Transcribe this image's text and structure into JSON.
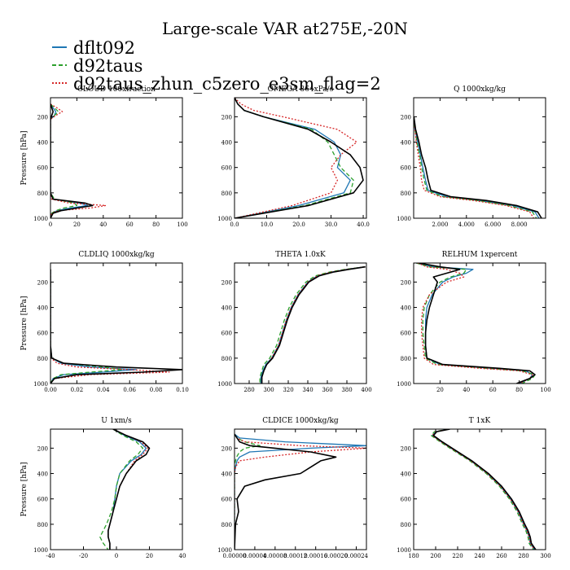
{
  "title": "Large-scale VAR at275E,-20N",
  "legend": [
    {
      "label": "dflt092",
      "color": "#1f77b4",
      "dash": "solid"
    },
    {
      "label": "d92taus",
      "color": "#2ca02c",
      "dash": "dashed"
    },
    {
      "label": "d92taus_zhun_c5zero_e3sm_flag=2",
      "color": "#d62728",
      "dash": "dotted"
    }
  ],
  "chart_data": [
    {
      "type": "line",
      "title": "CLOUD 100xfraction",
      "ylabel": "Pressure [hPa]",
      "xlim": [
        0,
        100
      ],
      "ylim": [
        1000,
        50
      ],
      "xticks": [
        "0",
        "20",
        "40",
        "60",
        "80",
        "100"
      ],
      "yticks": [
        "200",
        "400",
        "600",
        "800",
        "1000"
      ],
      "y": [
        100,
        130,
        160,
        190,
        220,
        300,
        500,
        700,
        800,
        850,
        880,
        900,
        920,
        940,
        960,
        1000
      ],
      "series": [
        {
          "name": "dflt092",
          "values": [
            0,
            2,
            4,
            3,
            0,
            0,
            0,
            0,
            0,
            2,
            22,
            28,
            15,
            5,
            1,
            0
          ]
        },
        {
          "name": "d92taus",
          "values": [
            0,
            3,
            6,
            3,
            0,
            0,
            0,
            0,
            0,
            3,
            18,
            20,
            10,
            4,
            1,
            0
          ]
        },
        {
          "name": "d92taus_zhun_c5zero_e3sm_flag=2",
          "values": [
            0,
            5,
            9,
            4,
            0,
            0,
            0,
            0,
            0,
            1,
            14,
            42,
            30,
            6,
            1,
            0
          ]
        },
        {
          "name": "",
          "values": [
            0,
            1,
            2,
            1,
            0,
            0,
            0,
            0,
            0,
            2,
            26,
            32,
            20,
            8,
            2,
            0
          ]
        }
      ]
    },
    {
      "type": "line",
      "title": "OMEGA 864xPa/s",
      "ylabel": "",
      "xlim": [
        0,
        41
      ],
      "ylim": [
        1000,
        50
      ],
      "xticks": [
        "0.0",
        "10.0",
        "20.0",
        "30.0",
        "40.0"
      ],
      "yticks": [
        "200",
        "400",
        "600",
        "800",
        "1000"
      ],
      "y": [
        50,
        100,
        150,
        200,
        300,
        400,
        500,
        600,
        700,
        800,
        900,
        1000
      ],
      "series": [
        {
          "name": "dflt092",
          "values": [
            0,
            1,
            3,
            9,
            25,
            31,
            33,
            32,
            36,
            34,
            20,
            0
          ]
        },
        {
          "name": "d92taus",
          "values": [
            0,
            1,
            3,
            9,
            24,
            29,
            31,
            33,
            37,
            36,
            22,
            0
          ]
        },
        {
          "name": "d92taus_zhun_c5zero_e3sm_flag=2",
          "values": [
            0,
            2,
            6,
            15,
            32,
            38,
            33,
            30,
            32,
            30,
            18,
            0
          ]
        },
        {
          "name": "",
          "values": [
            0,
            1,
            3,
            9,
            23,
            30,
            36,
            39,
            40,
            37,
            23,
            0
          ]
        }
      ]
    },
    {
      "type": "line",
      "title": "Q  1000xkg/kg",
      "ylabel": "",
      "xlim": [
        0,
        10
      ],
      "ylim": [
        1000,
        50
      ],
      "xticks": [
        "2.000",
        "4.000",
        "6.000",
        "8.000"
      ],
      "yticks": [
        "200",
        "400",
        "600",
        "800",
        "1000"
      ],
      "y": [
        200,
        300,
        400,
        500,
        600,
        700,
        780,
        830,
        860,
        900,
        950,
        1000
      ],
      "series": [
        {
          "name": "dflt092",
          "values": [
            0.02,
            0.1,
            0.3,
            0.5,
            0.7,
            0.9,
            1.1,
            2.5,
            5.0,
            7.5,
            9.2,
            9.5
          ]
        },
        {
          "name": "d92taus",
          "values": [
            0.02,
            0.1,
            0.25,
            0.45,
            0.6,
            0.8,
            1.0,
            2.2,
            4.8,
            7.2,
            9.0,
            9.3
          ]
        },
        {
          "name": "d92taus_zhun_c5zero_e3sm_flag=2",
          "values": [
            0.02,
            0.1,
            0.2,
            0.35,
            0.5,
            0.6,
            0.8,
            2.0,
            4.5,
            7.0,
            8.8,
            9.1
          ]
        },
        {
          "name": "",
          "values": [
            0.02,
            0.15,
            0.4,
            0.6,
            0.9,
            1.1,
            1.3,
            2.8,
            5.5,
            7.8,
            9.4,
            9.7
          ]
        }
      ]
    },
    {
      "type": "line",
      "title": "CLDLIQ  1000xkg/kg",
      "ylabel": "Pressure [hPa]",
      "xlim": [
        0,
        0.1
      ],
      "ylim": [
        1000,
        50
      ],
      "xticks": [
        "0.00",
        "0.02",
        "0.04",
        "0.06",
        "0.08",
        "0.10"
      ],
      "yticks": [
        "200",
        "400",
        "600",
        "800",
        "1000"
      ],
      "y": [
        100,
        700,
        800,
        840,
        870,
        890,
        910,
        930,
        960,
        1000
      ],
      "series": [
        {
          "name": "dflt092",
          "values": [
            0,
            0,
            0.001,
            0.008,
            0.03,
            0.065,
            0.04,
            0.01,
            0.002,
            0
          ]
        },
        {
          "name": "d92taus",
          "values": [
            0,
            0,
            0.001,
            0.01,
            0.04,
            0.055,
            0.03,
            0.008,
            0.002,
            0
          ]
        },
        {
          "name": "d92taus_zhun_c5zero_e3sm_flag=2",
          "values": [
            0,
            0,
            0.0005,
            0.005,
            0.02,
            0.06,
            0.09,
            0.03,
            0.003,
            0
          ]
        },
        {
          "name": "",
          "values": [
            0,
            0,
            0.001,
            0.01,
            0.05,
            0.1,
            0.07,
            0.02,
            0.003,
            0
          ]
        }
      ]
    },
    {
      "type": "line",
      "title": "THETA  1.0xK",
      "ylabel": "",
      "xlim": [
        265,
        400
      ],
      "ylim": [
        1000,
        50
      ],
      "xticks": [
        "280",
        "300",
        "320",
        "340",
        "360",
        "380",
        "400"
      ],
      "yticks": [
        "200",
        "400",
        "600",
        "800",
        "1000"
      ],
      "y": [
        80,
        100,
        120,
        150,
        200,
        250,
        300,
        400,
        500,
        600,
        700,
        800,
        850,
        900,
        950,
        1000
      ],
      "series": [
        {
          "name": "dflt092",
          "values": [
            398,
            380,
            365,
            350,
            340,
            335,
            330,
            323,
            318,
            314,
            310,
            303,
            297,
            294,
            292,
            292
          ]
        },
        {
          "name": "d92taus",
          "values": [
            398,
            378,
            363,
            348,
            338,
            333,
            328,
            321,
            316,
            312,
            308,
            301,
            295,
            293,
            291,
            291
          ]
        },
        {
          "name": "d92taus_zhun_c5zero_e3sm_flag=2",
          "values": [
            398,
            380,
            365,
            350,
            340,
            335,
            330,
            323,
            318,
            314,
            310,
            303,
            298,
            295,
            293,
            293
          ]
        },
        {
          "name": "",
          "values": [
            399,
            382,
            367,
            352,
            341,
            336,
            331,
            324,
            319,
            315,
            311,
            304,
            298,
            295,
            293,
            293
          ]
        }
      ]
    },
    {
      "type": "line",
      "title": "RELHUM  1xpercent",
      "ylabel": "",
      "xlim": [
        0,
        100
      ],
      "ylim": [
        1000,
        50
      ],
      "xticks": [
        "20",
        "40",
        "60",
        "80",
        "100"
      ],
      "yticks": [
        "200",
        "400",
        "600",
        "800",
        "1000"
      ],
      "y": [
        50,
        80,
        100,
        130,
        160,
        200,
        300,
        400,
        500,
        600,
        700,
        800,
        850,
        880,
        900,
        930,
        960,
        1000
      ],
      "series": [
        {
          "name": "dflt092",
          "values": [
            2,
            15,
            45,
            40,
            30,
            22,
            14,
            10,
            9,
            9,
            9,
            10,
            20,
            60,
            85,
            90,
            88,
            80
          ]
        },
        {
          "name": "d92taus",
          "values": [
            2,
            12,
            40,
            38,
            28,
            20,
            12,
            8,
            7,
            7,
            8,
            9,
            18,
            55,
            82,
            92,
            90,
            82
          ]
        },
        {
          "name": "d92taus_zhun_c5zero_e3sm_flag=2",
          "values": [
            3,
            10,
            25,
            35,
            38,
            25,
            12,
            7,
            6,
            6,
            7,
            8,
            15,
            50,
            80,
            90,
            88,
            80
          ]
        },
        {
          "name": "",
          "values": [
            4,
            20,
            35,
            25,
            15,
            18,
            15,
            12,
            10,
            9,
            9,
            10,
            22,
            65,
            88,
            92,
            88,
            78
          ]
        }
      ]
    },
    {
      "type": "line",
      "title": "U  1xm/s",
      "ylabel": "Pressure [hPa]",
      "xlim": [
        -40,
        40
      ],
      "ylim": [
        1000,
        50
      ],
      "xticks": [
        "-40",
        "-20",
        "0",
        "20",
        "40"
      ],
      "yticks": [
        "200",
        "400",
        "600",
        "800",
        "1000"
      ],
      "y": [
        50,
        100,
        150,
        200,
        250,
        300,
        400,
        500,
        600,
        700,
        800,
        850,
        900,
        950,
        1000
      ],
      "series": [
        {
          "name": "dflt092",
          "values": [
            -2,
            5,
            14,
            18,
            15,
            9,
            2,
            0,
            -1,
            -2,
            -4,
            -5,
            -5,
            -4,
            -4
          ]
        },
        {
          "name": "d92taus",
          "values": [
            -2,
            4,
            12,
            16,
            13,
            8,
            2,
            0,
            -1,
            -3,
            -6,
            -8,
            -10,
            -8,
            -5
          ]
        },
        {
          "name": "d92taus_zhun_c5zero_e3sm_flag=2",
          "values": [
            -2,
            6,
            15,
            19,
            16,
            11,
            6,
            2,
            0,
            -2,
            -4,
            -5,
            -5,
            -4,
            -4
          ]
        },
        {
          "name": "",
          "values": [
            -2,
            6,
            16,
            20,
            18,
            12,
            6,
            2,
            0,
            -2,
            -4,
            -5,
            -5,
            -4,
            -4
          ]
        }
      ]
    },
    {
      "type": "line",
      "title": "CLDICE  1000xkg/kg",
      "ylabel": "",
      "xlim": [
        0,
        0.00026
      ],
      "ylim": [
        1000,
        50
      ],
      "xticks": [
        "0.00000",
        "0.00004",
        "0.00008",
        "0.00012",
        "0.00016",
        "0.00020",
        "0.00024"
      ],
      "yticks": [
        "200",
        "400",
        "600",
        "800",
        "1000"
      ],
      "y": [
        90,
        120,
        150,
        180,
        200,
        230,
        270,
        300,
        350,
        400,
        450,
        500,
        600,
        700,
        800,
        1000
      ],
      "series": [
        {
          "name": "dflt092",
          "values": [
            0,
            1e-05,
            0.0001,
            0.00026,
            0.00015,
            3e-05,
            1e-05,
            5e-06,
            2e-06,
            0,
            0,
            0,
            0,
            0,
            0,
            0
          ]
        },
        {
          "name": "d92taus",
          "values": [
            0,
            5e-06,
            2e-05,
            5e-05,
            2e-05,
            1e-05,
            4e-06,
            2e-06,
            0,
            0,
            0,
            0,
            0,
            0,
            0,
            0
          ]
        },
        {
          "name": "d92taus_zhun_c5zero_e3sm_flag=2",
          "values": [
            0,
            5e-06,
            2e-05,
            0.00013,
            0.00026,
            0.00015,
            6e-05,
            1e-05,
            2e-06,
            0,
            0,
            0,
            0,
            0,
            0,
            0
          ]
        },
        {
          "name": "",
          "values": [
            0,
            5e-06,
            1e-05,
            3e-05,
            8e-05,
            0.00015,
            0.0002,
            0.00017,
            0.00015,
            0.00013,
            6e-05,
            2e-05,
            5e-06,
            8e-06,
            2e-06,
            0
          ]
        }
      ]
    },
    {
      "type": "line",
      "title": "T  1xK",
      "ylabel": "",
      "xlim": [
        180,
        300
      ],
      "ylim": [
        1000,
        50
      ],
      "xticks": [
        "180",
        "200",
        "220",
        "240",
        "260",
        "280",
        "300"
      ],
      "yticks": [
        "200",
        "400",
        "600",
        "800",
        "1000"
      ],
      "y": [
        50,
        70,
        100,
        150,
        200,
        300,
        400,
        500,
        600,
        700,
        800,
        850,
        900,
        950,
        1000
      ],
      "series": [
        {
          "name": "dflt092",
          "values": [
            212,
            200,
            197,
            205,
            214,
            232,
            247,
            259,
            268,
            275,
            280,
            283,
            285,
            286,
            290
          ]
        },
        {
          "name": "d92taus",
          "values": [
            212,
            199,
            196,
            204,
            213,
            231,
            246,
            258,
            267,
            274,
            279,
            282,
            284,
            285,
            289
          ]
        },
        {
          "name": "d92taus_zhun_c5zero_e3sm_flag=2",
          "values": [
            212,
            200,
            197,
            205,
            214,
            232,
            247,
            259,
            268,
            275,
            280,
            283,
            285,
            286,
            290
          ]
        },
        {
          "name": "",
          "values": [
            213,
            201,
            198,
            206,
            215,
            233,
            248,
            260,
            269,
            276,
            281,
            284,
            286,
            287,
            291
          ]
        }
      ]
    }
  ]
}
